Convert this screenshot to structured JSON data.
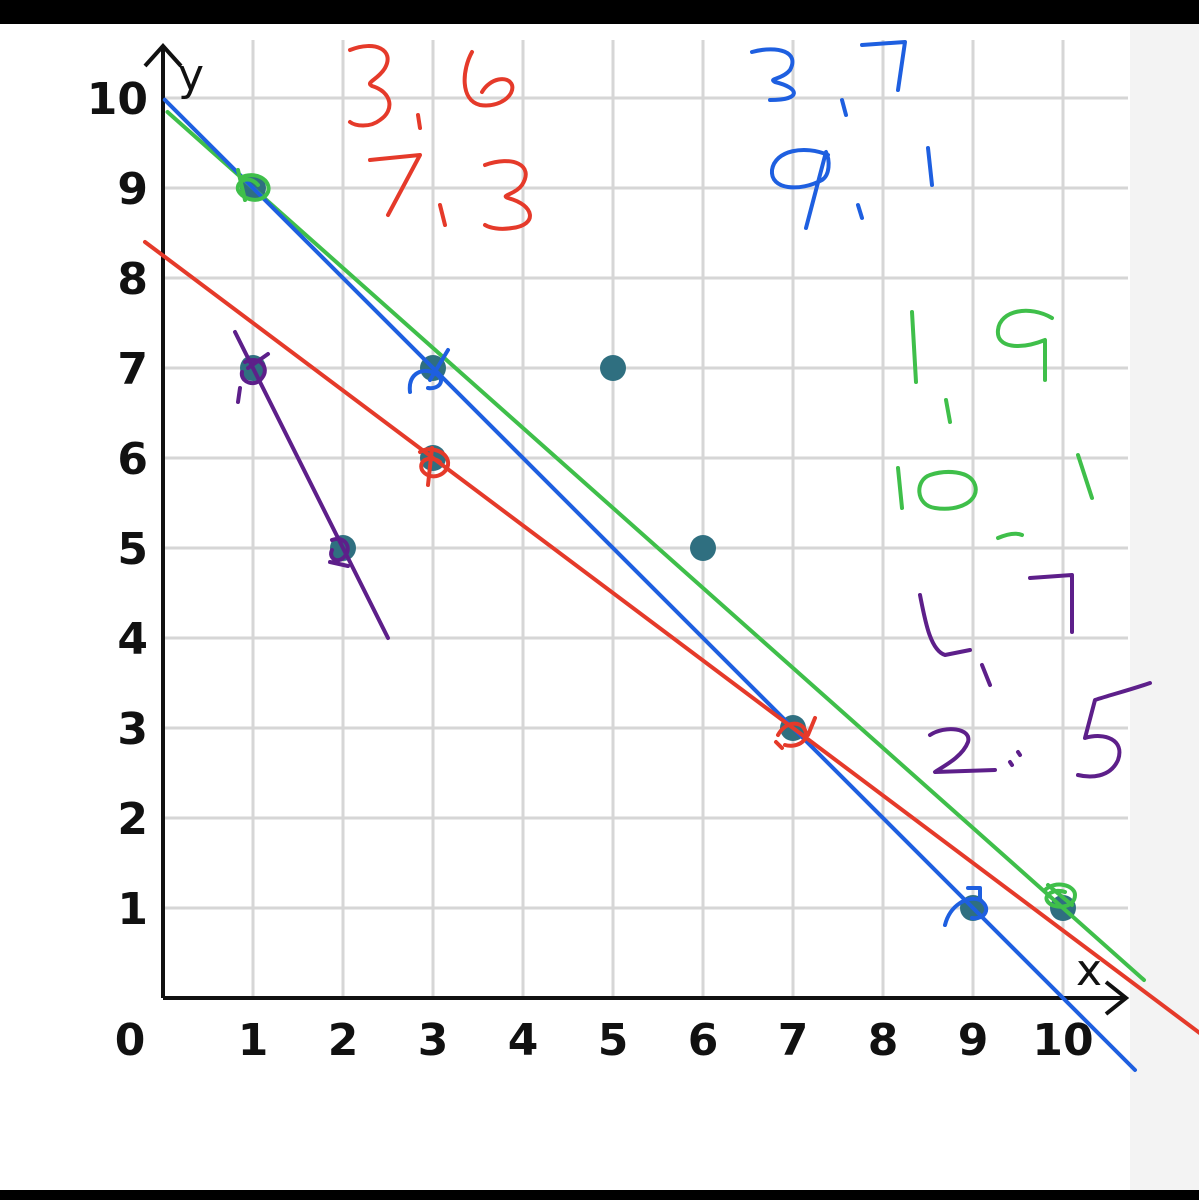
{
  "chart_data": {
    "type": "scatter",
    "title": "",
    "xlabel": "x",
    "ylabel": "y",
    "xlim": [
      0,
      10
    ],
    "ylim": [
      0,
      10
    ],
    "grid": true,
    "x_ticks": [
      "0",
      "1",
      "2",
      "3",
      "4",
      "5",
      "6",
      "7",
      "8",
      "9",
      "10"
    ],
    "y_ticks": [
      "1",
      "2",
      "3",
      "4",
      "5",
      "6",
      "7",
      "8",
      "9",
      "10"
    ],
    "points": [
      {
        "x": 1,
        "y": 9
      },
      {
        "x": 1,
        "y": 7
      },
      {
        "x": 2,
        "y": 5
      },
      {
        "x": 3,
        "y": 7
      },
      {
        "x": 3,
        "y": 6
      },
      {
        "x": 5,
        "y": 7
      },
      {
        "x": 6,
        "y": 5
      },
      {
        "x": 7,
        "y": 3
      },
      {
        "x": 9,
        "y": 1
      },
      {
        "x": 10,
        "y": 1
      }
    ],
    "point_color": "#2f6f80",
    "series": [
      {
        "color": "#3fbf4a",
        "values": [
          [
            1,
            9
          ],
          [
            10,
            1
          ]
        ]
      },
      {
        "color": "#1e5fe0",
        "values": [
          [
            3,
            7
          ],
          [
            9,
            1
          ]
        ]
      },
      {
        "color": "#e53a2a",
        "values": [
          [
            3,
            6
          ],
          [
            7,
            3
          ]
        ]
      },
      {
        "color": "#5d1f8a",
        "values": [
          [
            1,
            7
          ],
          [
            2,
            5
          ]
        ]
      }
    ],
    "annotations": [
      {
        "text": "3, 6",
        "color": "#e53a2a"
      },
      {
        "text": "7, 3",
        "color": "#e53a2a"
      },
      {
        "text": "3, 7",
        "color": "#1e5fe0"
      },
      {
        "text": "9, 1",
        "color": "#1e5fe0"
      },
      {
        "text": "1, 9",
        "color": "#3fbf4a"
      },
      {
        "text": "10, 1",
        "color": "#3fbf4a"
      },
      {
        "text": "1, 7",
        "color": "#5d1f8a"
      },
      {
        "text": "2, 5",
        "color": "#5d1f8a"
      }
    ]
  }
}
